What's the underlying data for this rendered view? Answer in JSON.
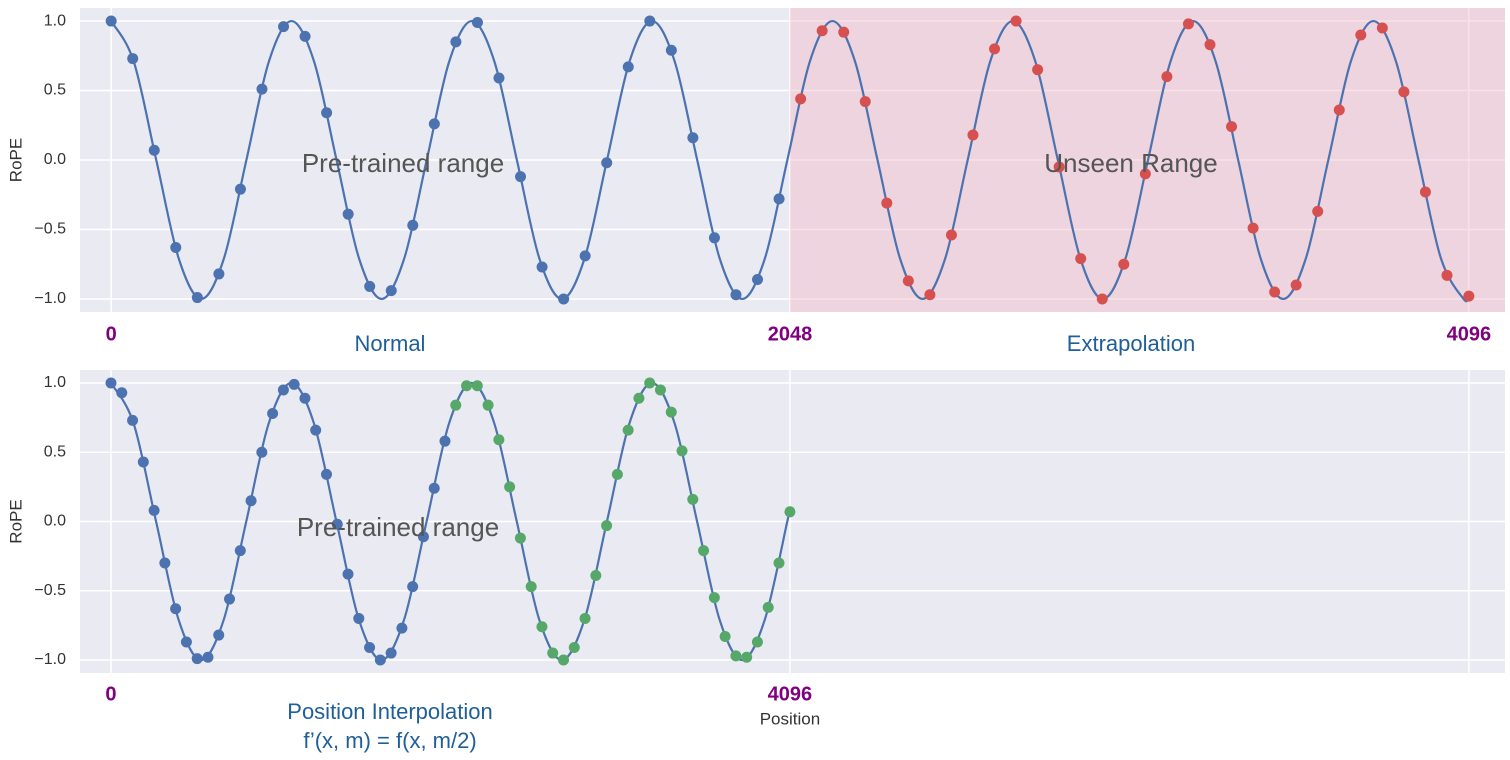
{
  "chart_data": [
    {
      "type": "line",
      "ylabel": "RoPE",
      "xlim": [
        -94,
        4205
      ],
      "ylim": [
        -1.094,
        1.094
      ],
      "xticks": [
        0,
        2048,
        4096
      ],
      "yticks": [
        {
          "value": -1,
          "label": "−1.0"
        },
        {
          "value": -0.5,
          "label": "−0.5"
        },
        {
          "value": 0,
          "label": "0.0"
        },
        {
          "value": 0.5,
          "label": "0.5"
        },
        {
          "value": 1,
          "label": "1.0"
        }
      ],
      "grid": true,
      "span": {
        "from": 2048,
        "to": 4205,
        "color": "#f2b3c3"
      },
      "annotations": [
        "Pre-trained range",
        "Unseen Range",
        "Normal",
        "Extrapolation"
      ],
      "series": [
        {
          "style": "line",
          "color": "#4c72b0",
          "x": [
            0,
            68,
            136,
            204,
            272,
            340,
            408,
            476,
            544,
            612,
            680,
            748,
            816,
            884,
            952,
            1020,
            1088,
            1156,
            1224,
            1292,
            1360,
            1428,
            1496,
            1564,
            1632,
            1700,
            1768,
            1836,
            1904,
            1972,
            2040,
            2108,
            2176,
            2244,
            2312,
            2380,
            2448,
            2516,
            2584,
            2652,
            2720,
            2788,
            2856,
            2924,
            2992,
            3060,
            3128,
            3196,
            3264,
            3332,
            3400,
            3468,
            3536,
            3604,
            3672,
            3740,
            3808,
            3876,
            3944,
            4012,
            4080,
            4096
          ],
          "values": [
            1,
            0.71,
            0,
            -0.71,
            -1,
            -0.71,
            0,
            0.71,
            1,
            0.71,
            0,
            -0.71,
            -1,
            -0.71,
            0,
            0.71,
            1,
            0.71,
            0,
            -0.71,
            -1,
            -0.71,
            0,
            0.71,
            1,
            0.71,
            0,
            -0.71,
            -1,
            -0.71,
            0,
            0.71,
            1,
            0.71,
            0,
            -0.71,
            -1,
            -0.71,
            0,
            0.71,
            1,
            0.71,
            0,
            -0.71,
            -1,
            -0.71,
            0,
            0.71,
            1,
            0.71,
            0,
            -0.71,
            -1,
            -0.71,
            0,
            0.71,
            1,
            0.71,
            0,
            -0.71,
            -1,
            -0.98
          ]
        },
        {
          "style": "markers",
          "color": "#4c72b0",
          "x": [
            0,
            65,
            130,
            195,
            260,
            325,
            390,
            455,
            520,
            585,
            650,
            715,
            780,
            845,
            910,
            975,
            1040,
            1105,
            1170,
            1235,
            1300,
            1365,
            1430,
            1495,
            1560,
            1625,
            1690,
            1755,
            1820,
            1885,
            1950,
            2015
          ],
          "values": [
            1.0,
            0.73,
            0.07,
            -0.63,
            -0.99,
            -0.82,
            -0.21,
            0.51,
            0.96,
            0.89,
            0.34,
            -0.39,
            -0.91,
            -0.94,
            -0.47,
            0.26,
            0.85,
            0.99,
            0.59,
            -0.12,
            -0.77,
            -1.0,
            -0.69,
            -0.02,
            0.67,
            1.0,
            0.79,
            0.16,
            -0.56,
            -0.97,
            -0.86,
            -0.28
          ]
        },
        {
          "style": "markers",
          "color": "#d65050",
          "x": [
            2080,
            2145,
            2210,
            2275,
            2340,
            2405,
            2470,
            2535,
            2600,
            2665,
            2730,
            2795,
            2860,
            2925,
            2990,
            3055,
            3120,
            3185,
            3250,
            3315,
            3380,
            3445,
            3510,
            3575,
            3640,
            3705,
            3770,
            3835,
            3900,
            3965,
            4030,
            4096
          ],
          "values": [
            0.44,
            0.93,
            0.92,
            0.42,
            -0.31,
            -0.87,
            -0.97,
            -0.54,
            0.18,
            0.8,
            1.0,
            0.65,
            -0.05,
            -0.71,
            -1.0,
            -0.75,
            -0.1,
            0.6,
            0.98,
            0.83,
            0.24,
            -0.49,
            -0.95,
            -0.9,
            -0.37,
            0.36,
            0.9,
            0.95,
            0.49,
            -0.23,
            -0.83,
            -0.98
          ]
        }
      ]
    },
    {
      "type": "line",
      "ylabel": "RoPE",
      "xlabel": "Position",
      "xlim": [
        -187,
        8410
      ],
      "ylim": [
        -1.094,
        1.094
      ],
      "xticks": [
        0,
        4096,
        {
          "value": 8192,
          "label": null
        }
      ],
      "yticks": [
        {
          "value": -1,
          "label": "−1.0"
        },
        {
          "value": -0.5,
          "label": "−0.5"
        },
        {
          "value": 0,
          "label": "0.0"
        },
        {
          "value": 0.5,
          "label": "0.5"
        },
        {
          "value": 1,
          "label": "1.0"
        }
      ],
      "grid": true,
      "annotations": [
        "Pre-trained range",
        "Position Interpolation",
        "f’(x, m) = f(x, m/2)"
      ],
      "series": [
        {
          "style": "line",
          "color": "#4c72b0",
          "x": [
            0,
            136,
            272,
            408,
            544,
            680,
            816,
            952,
            1088,
            1224,
            1360,
            1496,
            1632,
            1768,
            1904,
            2040,
            2176,
            2312,
            2448,
            2584,
            2720,
            2856,
            2992,
            3128,
            3264,
            3400,
            3536,
            3672,
            3808,
            3944,
            4080,
            4096
          ],
          "values": [
            1,
            0.71,
            0,
            -0.71,
            -1,
            -0.71,
            0,
            0.71,
            1,
            0.71,
            0,
            -0.71,
            -1,
            -0.71,
            0,
            0.71,
            1,
            0.71,
            0,
            -0.71,
            -1,
            -0.71,
            0,
            0.71,
            1,
            0.71,
            0,
            -0.71,
            -1,
            -0.71,
            0,
            0.09
          ]
        },
        {
          "style": "markers",
          "color": "#4c72b0",
          "x": [
            0,
            65,
            130,
            195,
            260,
            325,
            390,
            455,
            520,
            585,
            650,
            715,
            780,
            845,
            910,
            975,
            1040,
            1105,
            1170,
            1235,
            1300,
            1365,
            1430,
            1495,
            1560,
            1625,
            1690,
            1755,
            1820,
            1885,
            1950,
            2015
          ],
          "values": [
            1.0,
            0.93,
            0.73,
            0.43,
            0.08,
            -0.3,
            -0.63,
            -0.87,
            -0.99,
            -0.98,
            -0.82,
            -0.56,
            -0.21,
            0.15,
            0.5,
            0.78,
            0.95,
            0.99,
            0.89,
            0.66,
            0.34,
            -0.02,
            -0.38,
            -0.7,
            -0.91,
            -1.0,
            -0.95,
            -0.77,
            -0.47,
            -0.11,
            0.24,
            0.58
          ]
        },
        {
          "style": "markers",
          "color": "#55a868",
          "x": [
            2080,
            2145,
            2210,
            2275,
            2340,
            2405,
            2470,
            2535,
            2600,
            2665,
            2730,
            2795,
            2860,
            2925,
            2990,
            3055,
            3120,
            3185,
            3250,
            3315,
            3380,
            3445,
            3510,
            3575,
            3640,
            3705,
            3770,
            3835,
            3900,
            3965,
            4030,
            4096
          ],
          "values": [
            0.84,
            0.98,
            0.98,
            0.84,
            0.59,
            0.25,
            -0.12,
            -0.47,
            -0.76,
            -0.95,
            -1.0,
            -0.91,
            -0.7,
            -0.39,
            -0.03,
            0.34,
            0.66,
            0.89,
            1.0,
            0.95,
            0.79,
            0.51,
            0.16,
            -0.21,
            -0.55,
            -0.83,
            -0.97,
            -0.98,
            -0.87,
            -0.62,
            -0.3,
            0.07
          ]
        }
      ]
    }
  ]
}
